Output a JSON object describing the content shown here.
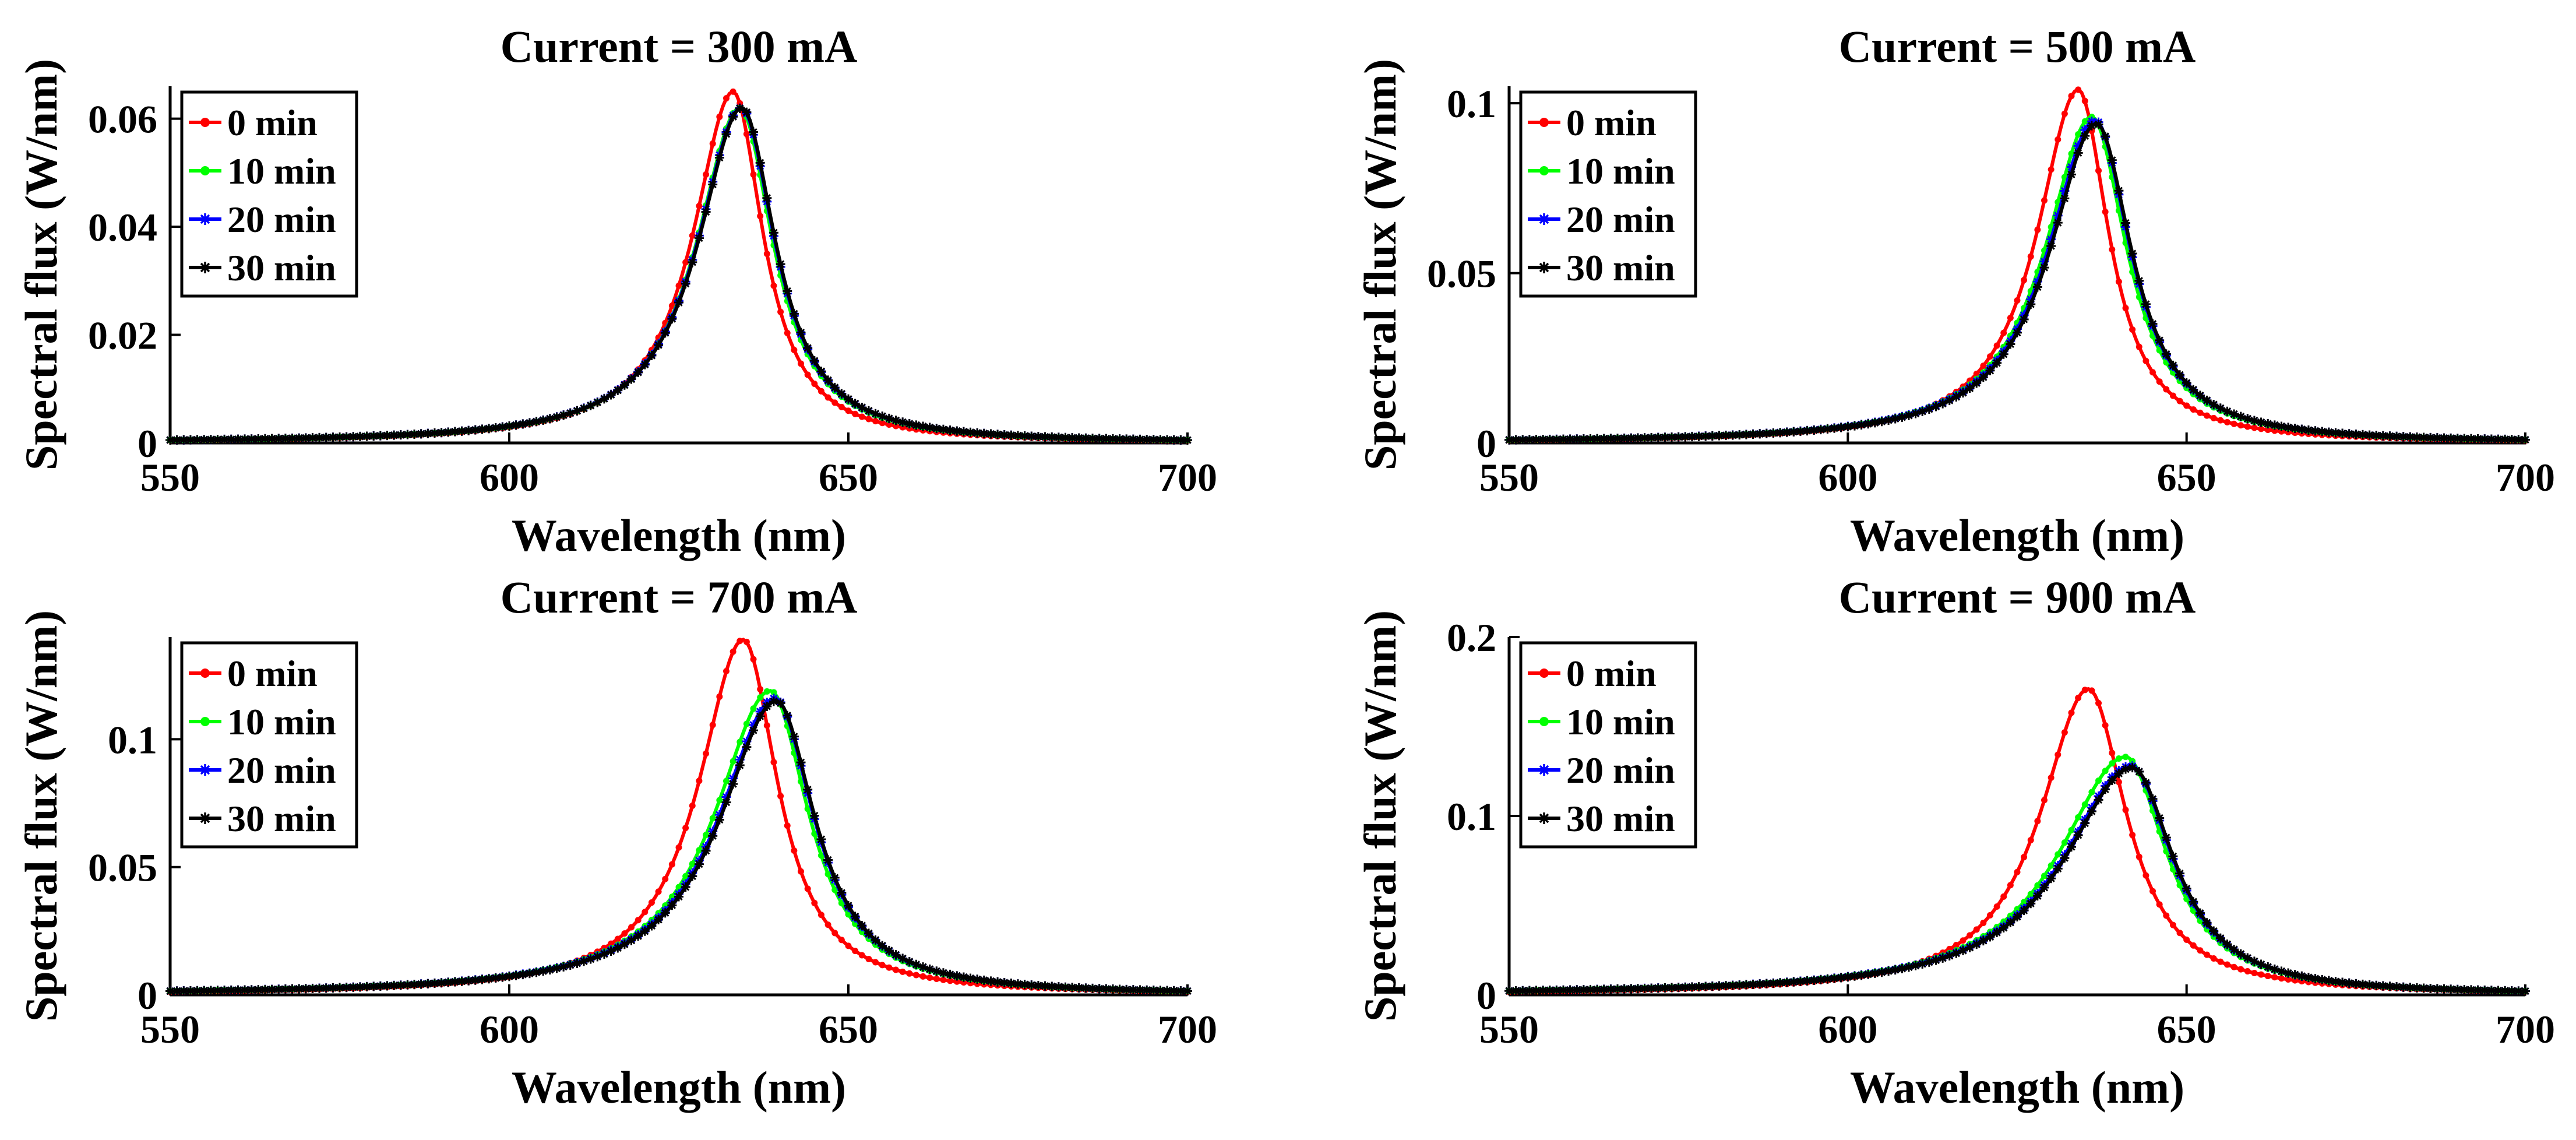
{
  "chart_data": [
    {
      "type": "line",
      "title": "Current = 300 mA",
      "xlabel": "Wavelength (nm)",
      "ylabel": "Spectral flux (W/nm)",
      "xlim": [
        550,
        700
      ],
      "ylim": [
        0,
        0.066
      ],
      "xticks": [
        550,
        600,
        650,
        700
      ],
      "xtick_labels": [
        "550",
        "600",
        "650",
        "700"
      ],
      "yticks": [
        0,
        0.02,
        0.04,
        0.06
      ],
      "ytick_labels": [
        "0",
        "0.02",
        "0.04",
        "0.06"
      ],
      "legend_position": "top-left",
      "series": [
        {
          "name": "0 min",
          "color": "#ff0000",
          "marker": "dot",
          "peak_wavelength": 633.0,
          "peak_value": 0.065,
          "width_left": 7.2,
          "width_right": 5.4
        },
        {
          "name": "10 min",
          "color": "#00ff00",
          "marker": "dot",
          "peak_wavelength": 634.0,
          "peak_value": 0.062,
          "width_left": 7.8,
          "width_right": 6.0
        },
        {
          "name": "20 min",
          "color": "#0000ff",
          "marker": "asterisk",
          "peak_wavelength": 634.2,
          "peak_value": 0.062,
          "width_left": 7.9,
          "width_right": 6.1
        },
        {
          "name": "30 min",
          "color": "#000000",
          "marker": "asterisk",
          "peak_wavelength": 634.3,
          "peak_value": 0.062,
          "width_left": 7.9,
          "width_right": 6.1
        }
      ]
    },
    {
      "type": "line",
      "title": "Current = 500 mA",
      "xlabel": "Wavelength (nm)",
      "ylabel": "Spectral flux (W/nm)",
      "xlim": [
        550,
        700
      ],
      "ylim": [
        0,
        0.105
      ],
      "xticks": [
        550,
        600,
        650,
        700
      ],
      "xtick_labels": [
        "550",
        "600",
        "650",
        "700"
      ],
      "yticks": [
        0,
        0.05,
        0.1
      ],
      "ytick_labels": [
        "0",
        "0.05",
        "0.1"
      ],
      "legend_position": "top-left",
      "series": [
        {
          "name": "0 min",
          "color": "#ff0000",
          "marker": "dot",
          "peak_wavelength": 634.0,
          "peak_value": 0.104,
          "width_left": 7.4,
          "width_right": 5.5
        },
        {
          "name": "10 min",
          "color": "#00ff00",
          "marker": "dot",
          "peak_wavelength": 636.0,
          "peak_value": 0.096,
          "width_left": 8.4,
          "width_right": 6.3
        },
        {
          "name": "20 min",
          "color": "#0000ff",
          "marker": "asterisk",
          "peak_wavelength": 636.5,
          "peak_value": 0.095,
          "width_left": 8.5,
          "width_right": 6.4
        },
        {
          "name": "30 min",
          "color": "#000000",
          "marker": "asterisk",
          "peak_wavelength": 636.7,
          "peak_value": 0.094,
          "width_left": 8.5,
          "width_right": 6.4
        }
      ]
    },
    {
      "type": "line",
      "title": "Current = 700 mA",
      "xlabel": "Wavelength (nm)",
      "ylabel": "Spectral flux (W/nm)",
      "xlim": [
        550,
        700
      ],
      "ylim": [
        0,
        0.14
      ],
      "xticks": [
        550,
        600,
        650,
        700
      ],
      "xtick_labels": [
        "550",
        "600",
        "650",
        "700"
      ],
      "yticks": [
        0,
        0.05,
        0.1
      ],
      "ytick_labels": [
        "0",
        "0.05",
        "0.1"
      ],
      "legend_position": "top-left",
      "series": [
        {
          "name": "0 min",
          "color": "#ff0000",
          "marker": "dot",
          "peak_wavelength": 634.5,
          "peak_value": 0.139,
          "width_left": 8.0,
          "width_right": 6.2
        },
        {
          "name": "10 min",
          "color": "#00ff00",
          "marker": "dot",
          "peak_wavelength": 638.5,
          "peak_value": 0.119,
          "width_left": 10.0,
          "width_right": 6.9
        },
        {
          "name": "20 min",
          "color": "#0000ff",
          "marker": "asterisk",
          "peak_wavelength": 639.2,
          "peak_value": 0.116,
          "width_left": 10.2,
          "width_right": 7.0
        },
        {
          "name": "30 min",
          "color": "#000000",
          "marker": "asterisk",
          "peak_wavelength": 639.4,
          "peak_value": 0.115,
          "width_left": 10.2,
          "width_right": 7.0
        }
      ]
    },
    {
      "type": "line",
      "title": "Current = 900 mA",
      "xlabel": "Wavelength (nm)",
      "ylabel": "Spectral flux (W/nm)",
      "xlim": [
        550,
        700
      ],
      "ylim": [
        0,
        0.2
      ],
      "xticks": [
        550,
        600,
        650,
        700
      ],
      "xtick_labels": [
        "550",
        "600",
        "650",
        "700"
      ],
      "yticks": [
        0,
        0.1,
        0.2
      ],
      "ytick_labels": [
        "0",
        "0.1",
        "0.2"
      ],
      "legend_position": "top-left",
      "series": [
        {
          "name": "0 min",
          "color": "#ff0000",
          "marker": "dot",
          "peak_wavelength": 635.5,
          "peak_value": 0.171,
          "width_left": 8.6,
          "width_right": 6.8
        },
        {
          "name": "10 min",
          "color": "#00ff00",
          "marker": "dot",
          "peak_wavelength": 641.0,
          "peak_value": 0.133,
          "width_left": 12.0,
          "width_right": 7.4
        },
        {
          "name": "20 min",
          "color": "#0000ff",
          "marker": "asterisk",
          "peak_wavelength": 641.8,
          "peak_value": 0.128,
          "width_left": 12.3,
          "width_right": 7.5
        },
        {
          "name": "30 min",
          "color": "#000000",
          "marker": "asterisk",
          "peak_wavelength": 642.0,
          "peak_value": 0.127,
          "width_left": 12.3,
          "width_right": 7.5
        }
      ]
    }
  ]
}
